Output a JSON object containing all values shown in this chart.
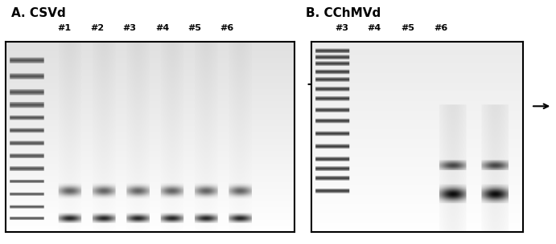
{
  "title_A": "A. CSVd",
  "title_B": "B. CChMVd",
  "labels_A": [
    "#1",
    "#2",
    "#3",
    "#4",
    "#5",
    "#6"
  ],
  "labels_B": [
    "#3",
    "#4",
    "#5",
    "#6"
  ],
  "fig_width": 6.91,
  "fig_height": 3.04,
  "background_color": "#ffffff",
  "gel_bg_A": "#e8e8e8",
  "gel_bg_B": "#f0f0f0"
}
